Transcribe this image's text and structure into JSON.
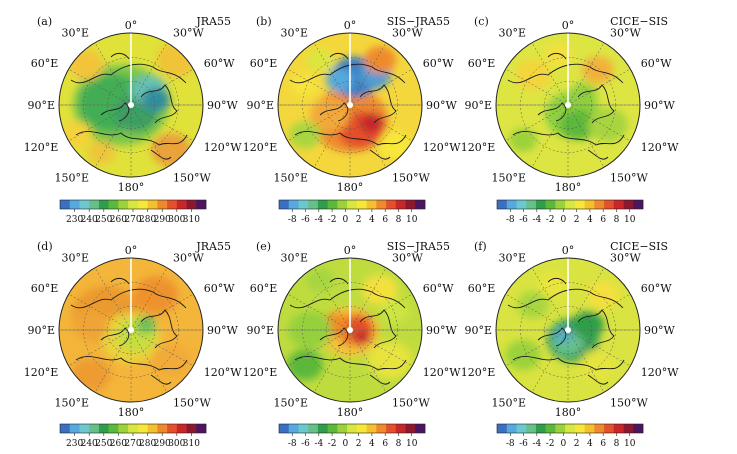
{
  "chart_data": {
    "type": "heatmap",
    "projection": "north-polar-stereographic",
    "longitude_labels": [
      "0°",
      "30°W",
      "60°W",
      "90°W",
      "120°W",
      "150°W",
      "180°",
      "150°E",
      "120°E",
      "90°E",
      "60°E",
      "30°E"
    ],
    "colorbars": {
      "absolute": {
        "ticks": [
          "230",
          "240",
          "250",
          "260",
          "270",
          "280",
          "290",
          "300",
          "310"
        ],
        "colors": [
          "#3a6fc4",
          "#55a9dc",
          "#6cc7d2",
          "#66c08a",
          "#2e9e4a",
          "#5cb83a",
          "#9bd23a",
          "#d8e640",
          "#f5e83a",
          "#f4c02e",
          "#ef8a2c",
          "#e4502a",
          "#c9262a",
          "#8e1730",
          "#4d1460"
        ]
      },
      "difference": {
        "ticks": [
          "-8",
          "-6",
          "-4",
          "-2",
          "0",
          "2",
          "4",
          "6",
          "8",
          "10"
        ],
        "colors": [
          "#3a6fc4",
          "#55a9dc",
          "#6cc7d2",
          "#66c08a",
          "#2e9e4a",
          "#5cb83a",
          "#9bd23a",
          "#d8e640",
          "#f5e83a",
          "#f4c02e",
          "#ef8a2c",
          "#e4502a",
          "#c9262a",
          "#8e1730",
          "#4d1460"
        ]
      }
    },
    "panels": [
      {
        "id": "a",
        "label": "(a)",
        "title": "JRA55",
        "scale": "absolute",
        "field": "mostly 260–280, polar cap 255–265"
      },
      {
        "id": "b",
        "label": "(b)",
        "title": "SIS−JRA55",
        "scale": "difference",
        "field": "warm +6 to +10 over Pacific Arctic; cold −6 near Barents"
      },
      {
        "id": "c",
        "label": "(c)",
        "title": "CICE−SIS",
        "scale": "difference",
        "field": "mostly 0 to +2; small negative patches"
      },
      {
        "id": "d",
        "label": "(d)",
        "title": "JRA55",
        "scale": "absolute",
        "field": "mostly 275–285, polar 265–272"
      },
      {
        "id": "e",
        "label": "(e)",
        "title": "SIS−JRA55",
        "scale": "difference",
        "field": "mostly 0 to +4; pole +6 to +10"
      },
      {
        "id": "f",
        "label": "(f)",
        "title": "CICE−SIS",
        "scale": "difference",
        "field": "mostly 0 to +2; negative −2 to −4 over Canadian Arctic"
      }
    ]
  }
}
